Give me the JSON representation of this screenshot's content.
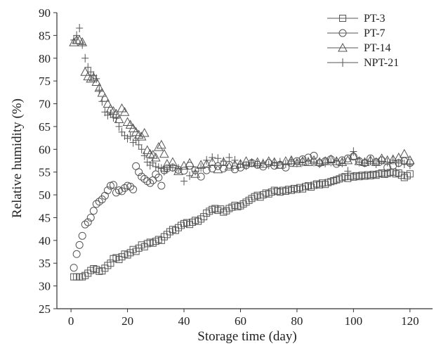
{
  "chart_data": {
    "type": "scatter",
    "title": "",
    "xlabel": "Storage time (day)",
    "ylabel": "Relative humidity (%)",
    "xlim": [
      -5,
      128
    ],
    "ylim": [
      25,
      90
    ],
    "xticks": [
      0,
      20,
      40,
      60,
      80,
      100,
      120
    ],
    "yticks": [
      25,
      30,
      35,
      40,
      45,
      50,
      55,
      60,
      65,
      70,
      75,
      80,
      85,
      90
    ],
    "grid": false,
    "legend_position": "top-right",
    "series": [
      {
        "name": "PT-3",
        "marker": "square",
        "x": [
          1,
          2,
          3,
          4,
          5,
          6,
          7,
          8,
          9,
          10,
          11,
          12,
          13,
          14,
          15,
          16,
          17,
          18,
          19,
          20,
          21,
          22,
          23,
          24,
          25,
          26,
          27,
          28,
          29,
          30,
          31,
          32,
          33,
          34,
          35,
          36,
          37,
          38,
          39,
          40,
          41,
          42,
          43,
          44,
          45,
          46,
          47,
          48,
          49,
          50,
          51,
          52,
          53,
          54,
          55,
          56,
          57,
          58,
          59,
          60,
          61,
          62,
          63,
          64,
          65,
          66,
          67,
          68,
          69,
          70,
          71,
          72,
          73,
          74,
          75,
          76,
          77,
          78,
          79,
          80,
          81,
          82,
          83,
          84,
          85,
          86,
          87,
          88,
          89,
          90,
          91,
          92,
          93,
          94,
          95,
          96,
          97,
          98,
          99,
          100,
          101,
          102,
          103,
          104,
          105,
          106,
          107,
          108,
          109,
          110,
          111,
          112,
          113,
          114,
          115,
          116,
          117,
          118,
          119,
          120
        ],
        "y": [
          32,
          32,
          32,
          32,
          32.3,
          32.8,
          33.4,
          33.8,
          33.6,
          33.2,
          33.3,
          33.9,
          34.5,
          35,
          36,
          36.2,
          35.8,
          36.4,
          37,
          36.8,
          37.3,
          38,
          37.6,
          38.3,
          39,
          38.6,
          39.3,
          39.6,
          39.4,
          39.8,
          40.2,
          40,
          40.8,
          41.3,
          41.9,
          42.4,
          42.2,
          42.8,
          43.3,
          43.7,
          43.9,
          43.5,
          44,
          44.4,
          44.2,
          44.7,
          45.2,
          46,
          46.4,
          46.8,
          47,
          46.6,
          46.9,
          46.2,
          46.5,
          47,
          47.3,
          47.7,
          47.4,
          47.6,
          48,
          48.4,
          48.8,
          49.2,
          49.6,
          49.9,
          49.5,
          50,
          50.4,
          50.2,
          50.6,
          51,
          50.8,
          50.6,
          51,
          50.8,
          51.2,
          51,
          51.4,
          51.2,
          51.6,
          51.3,
          51.8,
          52,
          51.7,
          52.1,
          52.4,
          52.2,
          52.6,
          52.3,
          52.7,
          52.9,
          53.1,
          53.3,
          53.5,
          53.8,
          54,
          53.6,
          54.1,
          53.9,
          54.2,
          54,
          54.3,
          54.1,
          54.4,
          54.2,
          54.5,
          54.3,
          54.6,
          54.8,
          54.5,
          54.7,
          54.9,
          55,
          54.6,
          54.8,
          54.3,
          53.8,
          54.2,
          54.6
        ]
      },
      {
        "name": "PT-7",
        "marker": "circle",
        "x": [
          1,
          2,
          3,
          4,
          5,
          6,
          7,
          8,
          9,
          10,
          11,
          12,
          13,
          14,
          15,
          16,
          17,
          18,
          19,
          20,
          21,
          22,
          23,
          24,
          25,
          26,
          27,
          28,
          29,
          30,
          31,
          32,
          33,
          34,
          36,
          38,
          40,
          42,
          44,
          46,
          48,
          50,
          52,
          54,
          56,
          58,
          60,
          62,
          64,
          66,
          68,
          70,
          72,
          74,
          76,
          78,
          80,
          82,
          84,
          86,
          88,
          90,
          92,
          94,
          96,
          98,
          100,
          102,
          104,
          106,
          108,
          110,
          112,
          114,
          116,
          118,
          120
        ],
        "y": [
          34,
          37,
          39,
          41,
          43.5,
          44,
          45,
          46.5,
          48,
          48.5,
          49,
          49.8,
          51,
          52,
          52.2,
          50.5,
          51,
          50.8,
          51.5,
          52,
          51.8,
          51.2,
          56.3,
          55,
          54,
          53.5,
          53,
          52.6,
          53.2,
          54.5,
          53.8,
          52,
          55.4,
          55.8,
          56,
          55.5,
          55.3,
          56.4,
          55.4,
          54,
          55.4,
          55.8,
          56.3,
          55.8,
          56.6,
          55.6,
          56,
          56.5,
          57,
          56.6,
          56.2,
          57,
          56.4,
          56.6,
          56,
          57,
          57.4,
          57.8,
          58.2,
          58.6,
          57,
          57.4,
          57.8,
          56.8,
          57.6,
          58,
          58.4,
          57.4,
          57,
          58,
          57.2,
          57.6,
          56,
          56.4,
          57,
          57.4,
          57
        ]
      },
      {
        "name": "PT-14",
        "marker": "triangle",
        "x": [
          1,
          2,
          3,
          4,
          5,
          6,
          7,
          8,
          9,
          10,
          11,
          12,
          13,
          14,
          15,
          16,
          17,
          18,
          19,
          20,
          21,
          22,
          23,
          24,
          25,
          26,
          27,
          28,
          29,
          30,
          31,
          32,
          33,
          34,
          36,
          38,
          40,
          42,
          44,
          46,
          48,
          50,
          52,
          54,
          56,
          58,
          60,
          62,
          64,
          66,
          68,
          70,
          72,
          74,
          76,
          78,
          80,
          82,
          84,
          86,
          88,
          90,
          92,
          94,
          96,
          98,
          100,
          102,
          104,
          106,
          108,
          110,
          112,
          114,
          116,
          118,
          120
        ],
        "y": [
          83.5,
          84,
          84,
          83.5,
          77,
          76,
          75.5,
          75.8,
          74.8,
          73.5,
          72.4,
          71.3,
          70,
          68.9,
          68.4,
          67.8,
          66.6,
          69,
          68.2,
          66,
          65.4,
          64.6,
          63.8,
          63.2,
          62.8,
          63.6,
          59.8,
          59,
          58.8,
          58.2,
          60.5,
          61,
          59,
          56.8,
          57.2,
          55.2,
          56.4,
          57,
          54.6,
          56.6,
          56.8,
          57.2,
          55.6,
          57.2,
          56.2,
          56.6,
          56.8,
          57.4,
          57,
          57.2,
          56.8,
          57.4,
          57.2,
          56.6,
          57.4,
          57.6,
          57,
          57.4,
          57.2,
          57.6,
          57.2,
          57.4,
          57.8,
          57.4,
          57.2,
          57.6,
          58.6,
          57.4,
          57.2,
          57.6,
          57.2,
          58,
          57.6,
          57.8,
          58.2,
          59,
          57.6
        ]
      },
      {
        "name": "NPT-21",
        "marker": "plus",
        "x": [
          1,
          2,
          3,
          4,
          5,
          6,
          7,
          8,
          9,
          10,
          11,
          12,
          13,
          14,
          15,
          16,
          17,
          18,
          19,
          20,
          21,
          22,
          23,
          24,
          25,
          26,
          27,
          28,
          29,
          30,
          31,
          32,
          33,
          34,
          36,
          38,
          40,
          42,
          44,
          46,
          48,
          50,
          52,
          54,
          56,
          58,
          60,
          62,
          64,
          66,
          68,
          70,
          72,
          74,
          76,
          78,
          80,
          82,
          84,
          86,
          88,
          90,
          92,
          94,
          96,
          98,
          100,
          102,
          104,
          106,
          108,
          110,
          112,
          114,
          116,
          118,
          120
        ],
        "y": [
          84,
          85,
          86.6,
          83,
          80,
          78,
          77,
          76.2,
          75.5,
          73,
          70.5,
          68.2,
          67.5,
          67.8,
          67,
          66.8,
          65,
          63.8,
          63,
          62.4,
          62.8,
          61.5,
          62,
          61,
          60,
          58.6,
          57.2,
          56.5,
          57,
          56.2,
          56,
          55.8,
          55.2,
          55.6,
          56,
          55.8,
          53,
          54.2,
          55.2,
          56,
          57.6,
          58.2,
          58,
          57.4,
          58.2,
          57.6,
          56.8,
          56.4,
          57,
          56.8,
          57,
          56.6,
          57,
          57.2,
          56.8,
          57.4,
          57,
          57.2,
          57.4,
          57.2,
          56.8,
          57,
          57.2,
          57.4,
          57,
          55.2,
          59.5,
          57.2,
          57,
          57.4,
          56.8,
          57.4,
          57.2,
          57.6,
          57,
          56.8,
          56.6
        ]
      }
    ]
  }
}
